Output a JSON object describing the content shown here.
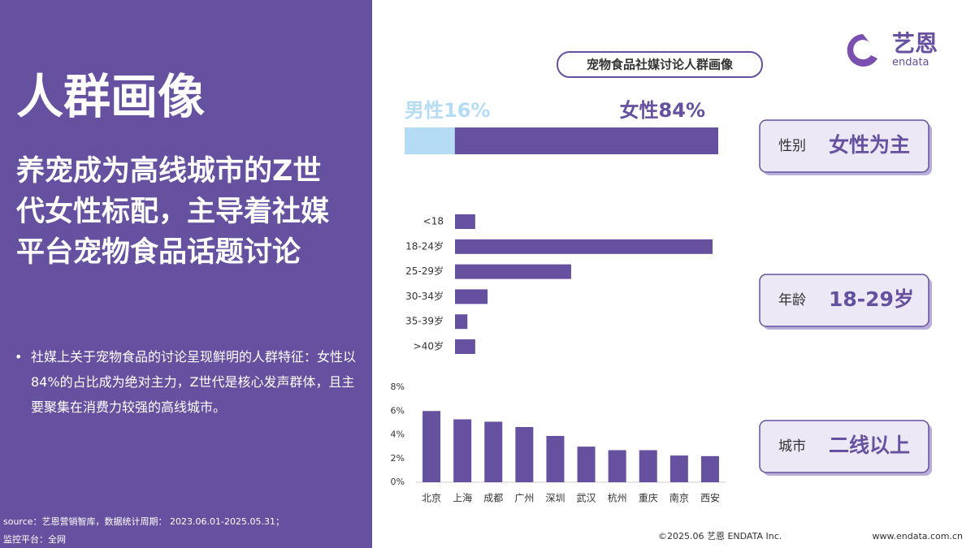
{
  "left_panel": {
    "title": "人群画像",
    "headline": "养宠成为高线城市的Z世代女性标配，主导着社媒平台宠物食品话题讨论",
    "bullet": "社媒上关于宠物食品的讨论呈现鲜明的人群特征：女性以84%的占比成为绝对主力，Z世代是核心发声群体，且主要聚集在消费力较强的高线城市。",
    "source": "source：艺恩营销智库，数据统计周期： 2023.06.01-2025.05.31；",
    "platform": "监控平台：全网"
  },
  "logo": {
    "name": "艺恩",
    "brand": "endata"
  },
  "section_title": "宠物食品社媒讨论人群画像",
  "chart_data": [
    {
      "type": "bar",
      "orientation": "horizontal",
      "stacked": true,
      "series": [
        {
          "color": "#b5dcf5",
          "values": [
            16
          ],
          "value_labels": [
            "男性16%"
          ]
        },
        {
          "color": "#6650a0",
          "values": [
            84
          ],
          "value_labels": [
            "女性84%"
          ]
        }
      ]
    },
    {
      "type": "bar",
      "orientation": "horizontal",
      "color": "#6650a0",
      "categories": [
        "<18",
        "18-24岁",
        "25-29岁",
        "30-34岁",
        "35-39岁",
        ">40岁"
      ],
      "values": [
        4.4,
        56.1,
        25.3,
        7.1,
        2.7,
        4.4
      ]
    },
    {
      "type": "bar",
      "orientation": "vertical",
      "color": "#6650a0",
      "categories": [
        "北京",
        "上海",
        "成都",
        "广州",
        "深圳",
        "武汉",
        "杭州",
        "重庆",
        "南京",
        "西安"
      ],
      "values": [
        6.0,
        5.3,
        5.1,
        4.65,
        3.9,
        3.0,
        2.7,
        2.7,
        2.25,
        2.2
      ],
      "ylim": [
        0,
        8
      ],
      "yticks": [
        {
          "value": 0,
          "label": "0%"
        },
        {
          "value": 2,
          "label": "2%"
        },
        {
          "value": 4,
          "label": "4%"
        },
        {
          "value": 6,
          "label": "6%"
        },
        {
          "value": 8,
          "label": "8%"
        }
      ]
    }
  ],
  "tags": [
    {
      "label": "性别",
      "value": "女性为主"
    },
    {
      "label": "年龄",
      "value": "18-29岁"
    },
    {
      "label": "城市",
      "value": "二线以上"
    }
  ],
  "footer": {
    "copyright": "©2025.06 艺恩 ENDATA Inc.",
    "website": "www.endata.com.cn"
  }
}
